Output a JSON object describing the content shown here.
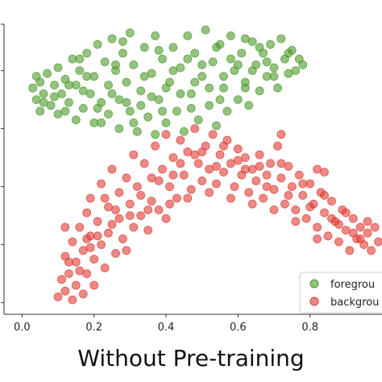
{
  "caption": "Without Pre-training",
  "chart_data": {
    "type": "scatter",
    "xlim": [
      -0.05,
      1.0
    ],
    "ylim": [
      0.0,
      1.0
    ],
    "x_ticks": [
      "0.0",
      "0.2",
      "0.4",
      "0.6",
      "0.8"
    ],
    "x_tick_values": [
      0.0,
      0.2,
      0.4,
      0.6,
      0.8
    ],
    "y_tick_values": [
      0.04,
      0.24,
      0.44,
      0.64,
      0.84,
      1.0
    ],
    "legend": {
      "placement": "bottom-right",
      "entries": [
        "foregrou",
        "backgrou"
      ]
    },
    "series": [
      {
        "name": "foregrou",
        "color": "#4c9a2a",
        "points": [
          [
            0.03,
            0.78
          ],
          [
            0.04,
            0.74
          ],
          [
            0.05,
            0.8
          ],
          [
            0.05,
            0.7
          ],
          [
            0.06,
            0.76
          ],
          [
            0.07,
            0.83
          ],
          [
            0.08,
            0.72
          ],
          [
            0.09,
            0.79
          ],
          [
            0.1,
            0.85
          ],
          [
            0.1,
            0.69
          ],
          [
            0.11,
            0.76
          ],
          [
            0.12,
            0.81
          ],
          [
            0.13,
            0.73
          ],
          [
            0.14,
            0.88
          ],
          [
            0.15,
            0.67
          ],
          [
            0.15,
            0.79
          ],
          [
            0.16,
            0.84
          ],
          [
            0.17,
            0.71
          ],
          [
            0.18,
            0.9
          ],
          [
            0.19,
            0.76
          ],
          [
            0.2,
            0.66
          ],
          [
            0.2,
            0.82
          ],
          [
            0.21,
            0.93
          ],
          [
            0.22,
            0.73
          ],
          [
            0.23,
            0.87
          ],
          [
            0.24,
            0.69
          ],
          [
            0.24,
            0.79
          ],
          [
            0.25,
            0.95
          ],
          [
            0.26,
            0.84
          ],
          [
            0.27,
            0.64
          ],
          [
            0.27,
            0.74
          ],
          [
            0.28,
            0.9
          ],
          [
            0.29,
            0.8
          ],
          [
            0.3,
            0.7
          ],
          [
            0.3,
            0.97
          ],
          [
            0.31,
            0.86
          ],
          [
            0.32,
            0.63
          ],
          [
            0.33,
            0.77
          ],
          [
            0.34,
            0.92
          ],
          [
            0.35,
            0.68
          ],
          [
            0.36,
            0.83
          ],
          [
            0.37,
            0.62
          ],
          [
            0.37,
            0.96
          ],
          [
            0.38,
            0.74
          ],
          [
            0.39,
            0.88
          ],
          [
            0.4,
            0.66
          ],
          [
            0.41,
            0.8
          ],
          [
            0.42,
            0.92
          ],
          [
            0.43,
            0.7
          ],
          [
            0.44,
            0.85
          ],
          [
            0.45,
            0.63
          ],
          [
            0.46,
            0.96
          ],
          [
            0.47,
            0.76
          ],
          [
            0.48,
            0.9
          ],
          [
            0.49,
            0.67
          ],
          [
            0.5,
            0.82
          ],
          [
            0.51,
            0.98
          ],
          [
            0.52,
            0.72
          ],
          [
            0.53,
            0.87
          ],
          [
            0.54,
            0.65
          ],
          [
            0.55,
            0.93
          ],
          [
            0.56,
            0.78
          ],
          [
            0.57,
            0.7
          ],
          [
            0.58,
            0.96
          ],
          [
            0.59,
            0.84
          ],
          [
            0.6,
            0.74
          ],
          [
            0.61,
            0.9
          ],
          [
            0.62,
            0.8
          ],
          [
            0.63,
            0.72
          ],
          [
            0.64,
            0.94
          ],
          [
            0.65,
            0.86
          ],
          [
            0.66,
            0.77
          ],
          [
            0.67,
            0.9
          ],
          [
            0.68,
            0.82
          ],
          [
            0.69,
            0.93
          ],
          [
            0.7,
            0.85
          ],
          [
            0.71,
            0.78
          ],
          [
            0.72,
            0.95
          ],
          [
            0.73,
            0.88
          ],
          [
            0.74,
            0.83
          ],
          [
            0.75,
            0.91
          ],
          [
            0.76,
            0.84
          ],
          [
            0.77,
            0.88
          ],
          [
            0.78,
            0.86
          ],
          [
            0.06,
            0.73
          ],
          [
            0.09,
            0.75
          ],
          [
            0.13,
            0.79
          ],
          [
            0.17,
            0.77
          ],
          [
            0.21,
            0.71
          ],
          [
            0.25,
            0.76
          ],
          [
            0.29,
            0.73
          ],
          [
            0.33,
            0.72
          ],
          [
            0.36,
            0.75
          ],
          [
            0.4,
            0.78
          ],
          [
            0.44,
            0.76
          ],
          [
            0.48,
            0.8
          ],
          [
            0.52,
            0.78
          ],
          [
            0.56,
            0.82
          ],
          [
            0.6,
            0.86
          ],
          [
            0.64,
            0.84
          ],
          [
            0.68,
            0.87
          ],
          [
            0.18,
            0.82
          ],
          [
            0.26,
            0.86
          ],
          [
            0.34,
            0.82
          ],
          [
            0.42,
            0.84
          ],
          [
            0.5,
            0.86
          ],
          [
            0.58,
            0.88
          ],
          [
            0.66,
            0.92
          ],
          [
            0.04,
            0.82
          ],
          [
            0.12,
            0.7
          ],
          [
            0.22,
            0.66
          ],
          [
            0.31,
            0.66
          ],
          [
            0.39,
            0.7
          ],
          [
            0.47,
            0.71
          ],
          [
            0.55,
            0.74
          ],
          [
            0.62,
            0.78
          ],
          [
            0.7,
            0.82
          ],
          [
            0.74,
            0.9
          ],
          [
            0.16,
            0.88
          ],
          [
            0.28,
            0.94
          ],
          [
            0.38,
            0.91
          ],
          [
            0.46,
            0.88
          ],
          [
            0.54,
            0.92
          ],
          [
            0.62,
            0.95
          ]
        ]
      },
      {
        "name": "backgrou",
        "color": "#e03b33",
        "points": [
          [
            0.1,
            0.06
          ],
          [
            0.11,
            0.12
          ],
          [
            0.12,
            0.08
          ],
          [
            0.12,
            0.2
          ],
          [
            0.13,
            0.14
          ],
          [
            0.14,
            0.05
          ],
          [
            0.14,
            0.25
          ],
          [
            0.15,
            0.1
          ],
          [
            0.15,
            0.18
          ],
          [
            0.16,
            0.3
          ],
          [
            0.17,
            0.07
          ],
          [
            0.17,
            0.22
          ],
          [
            0.18,
            0.14
          ],
          [
            0.18,
            0.35
          ],
          [
            0.19,
            0.27
          ],
          [
            0.19,
            0.4
          ],
          [
            0.2,
            0.1
          ],
          [
            0.2,
            0.19
          ],
          [
            0.21,
            0.32
          ],
          [
            0.22,
            0.24
          ],
          [
            0.22,
            0.45
          ],
          [
            0.23,
            0.16
          ],
          [
            0.24,
            0.37
          ],
          [
            0.24,
            0.28
          ],
          [
            0.25,
            0.5
          ],
          [
            0.26,
            0.21
          ],
          [
            0.27,
            0.42
          ],
          [
            0.27,
            0.33
          ],
          [
            0.28,
            0.26
          ],
          [
            0.29,
            0.47
          ],
          [
            0.3,
            0.38
          ],
          [
            0.31,
            0.3
          ],
          [
            0.31,
            0.55
          ],
          [
            0.32,
            0.44
          ],
          [
            0.33,
            0.34
          ],
          [
            0.34,
            0.52
          ],
          [
            0.35,
            0.29
          ],
          [
            0.36,
            0.47
          ],
          [
            0.37,
            0.58
          ],
          [
            0.38,
            0.36
          ],
          [
            0.39,
            0.5
          ],
          [
            0.4,
            0.62
          ],
          [
            0.4,
            0.33
          ],
          [
            0.41,
            0.44
          ],
          [
            0.42,
            0.54
          ],
          [
            0.43,
            0.4
          ],
          [
            0.44,
            0.6
          ],
          [
            0.45,
            0.48
          ],
          [
            0.46,
            0.56
          ],
          [
            0.47,
            0.43
          ],
          [
            0.48,
            0.64
          ],
          [
            0.49,
            0.52
          ],
          [
            0.5,
            0.46
          ],
          [
            0.51,
            0.58
          ],
          [
            0.52,
            0.5
          ],
          [
            0.53,
            0.62
          ],
          [
            0.54,
            0.45
          ],
          [
            0.55,
            0.55
          ],
          [
            0.56,
            0.49
          ],
          [
            0.57,
            0.6
          ],
          [
            0.58,
            0.52
          ],
          [
            0.59,
            0.44
          ],
          [
            0.6,
            0.57
          ],
          [
            0.61,
            0.48
          ],
          [
            0.62,
            0.54
          ],
          [
            0.63,
            0.42
          ],
          [
            0.64,
            0.5
          ],
          [
            0.65,
            0.46
          ],
          [
            0.66,
            0.55
          ],
          [
            0.67,
            0.4
          ],
          [
            0.68,
            0.48
          ],
          [
            0.69,
            0.52
          ],
          [
            0.7,
            0.43
          ],
          [
            0.71,
            0.58
          ],
          [
            0.72,
            0.47
          ],
          [
            0.73,
            0.38
          ],
          [
            0.74,
            0.51
          ],
          [
            0.75,
            0.44
          ],
          [
            0.76,
            0.36
          ],
          [
            0.77,
            0.48
          ],
          [
            0.78,
            0.41
          ],
          [
            0.79,
            0.33
          ],
          [
            0.8,
            0.45
          ],
          [
            0.81,
            0.38
          ],
          [
            0.82,
            0.3
          ],
          [
            0.83,
            0.42
          ],
          [
            0.84,
            0.35
          ],
          [
            0.85,
            0.27
          ],
          [
            0.86,
            0.39
          ],
          [
            0.87,
            0.32
          ],
          [
            0.88,
            0.25
          ],
          [
            0.89,
            0.36
          ],
          [
            0.9,
            0.29
          ],
          [
            0.91,
            0.22
          ],
          [
            0.92,
            0.33
          ],
          [
            0.93,
            0.26
          ],
          [
            0.94,
            0.3
          ],
          [
            0.95,
            0.24
          ],
          [
            0.96,
            0.28
          ],
          [
            0.97,
            0.22
          ],
          [
            0.98,
            0.3
          ],
          [
            0.99,
            0.25
          ],
          [
            0.72,
            0.62
          ],
          [
            0.82,
            0.5
          ],
          [
            0.84,
            0.49
          ],
          [
            0.16,
            0.15
          ],
          [
            0.21,
            0.27
          ],
          [
            0.26,
            0.36
          ],
          [
            0.33,
            0.41
          ],
          [
            0.38,
            0.46
          ],
          [
            0.44,
            0.52
          ],
          [
            0.5,
            0.56
          ],
          [
            0.56,
            0.58
          ],
          [
            0.62,
            0.5
          ],
          [
            0.68,
            0.44
          ],
          [
            0.74,
            0.41
          ],
          [
            0.8,
            0.37
          ],
          [
            0.86,
            0.33
          ],
          [
            0.92,
            0.28
          ],
          [
            0.13,
            0.18
          ],
          [
            0.19,
            0.23
          ],
          [
            0.25,
            0.31
          ],
          [
            0.3,
            0.34
          ],
          [
            0.36,
            0.39
          ],
          [
            0.42,
            0.48
          ],
          [
            0.48,
            0.55
          ],
          [
            0.54,
            0.51
          ],
          [
            0.6,
            0.53
          ],
          [
            0.66,
            0.51
          ],
          [
            0.72,
            0.52
          ],
          [
            0.78,
            0.45
          ],
          [
            0.84,
            0.41
          ],
          [
            0.9,
            0.35
          ],
          [
            0.96,
            0.32
          ],
          [
            0.12,
            0.3
          ],
          [
            0.18,
            0.26
          ],
          [
            0.23,
            0.4
          ],
          [
            0.29,
            0.22
          ],
          [
            0.35,
            0.36
          ],
          [
            0.41,
            0.38
          ],
          [
            0.46,
            0.4
          ],
          [
            0.52,
            0.42
          ],
          [
            0.58,
            0.4
          ],
          [
            0.64,
            0.38
          ],
          [
            0.7,
            0.36
          ],
          [
            0.76,
            0.32
          ],
          [
            0.82,
            0.26
          ],
          [
            0.88,
            0.31
          ],
          [
            0.94,
            0.26
          ]
        ]
      }
    ]
  }
}
